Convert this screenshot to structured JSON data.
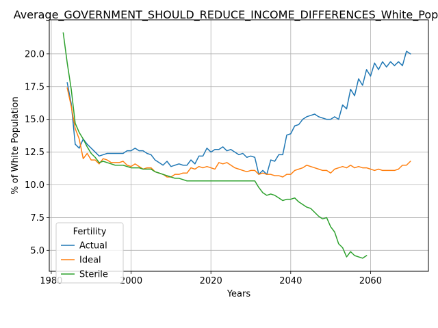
{
  "chart_data": {
    "type": "line",
    "title": "Average_GOVERNMENT_SHOULD_REDUCE_INCOME_DIFFERENCES_White_Pop",
    "xlabel": "Years",
    "ylabel": "% of White Population",
    "xlim": [
      1979.5,
      2074.5
    ],
    "ylim": [
      3.4,
      22.6
    ],
    "xticks": [
      1980,
      2000,
      2020,
      2040,
      2060
    ],
    "yticks": [
      5.0,
      7.5,
      10.0,
      12.5,
      15.0,
      17.5,
      20.0
    ],
    "xtick_labels": [
      "1980",
      "2000",
      "2020",
      "2040",
      "2060"
    ],
    "ytick_labels": [
      "5.0",
      "7.5",
      "10.0",
      "12.5",
      "15.0",
      "17.5",
      "20.0"
    ],
    "grid": true,
    "legend": {
      "title": "Fertility",
      "position": "lower left"
    },
    "series": [
      {
        "name": "Actual",
        "color": "#1f77b4",
        "x": [
          1984,
          1985,
          1986,
          1987,
          1988,
          1989,
          1990,
          1991,
          1992,
          1993,
          1994,
          1995,
          1996,
          1997,
          1998,
          1999,
          2000,
          2001,
          2002,
          2003,
          2004,
          2005,
          2006,
          2007,
          2008,
          2009,
          2010,
          2011,
          2012,
          2013,
          2014,
          2015,
          2016,
          2017,
          2018,
          2019,
          2020,
          2021,
          2022,
          2023,
          2024,
          2025,
          2026,
          2027,
          2028,
          2029,
          2030,
          2031,
          2032,
          2033,
          2034,
          2035,
          2036,
          2037,
          2038,
          2039,
          2040,
          2041,
          2042,
          2043,
          2044,
          2045,
          2046,
          2047,
          2048,
          2049,
          2050,
          2051,
          2052,
          2053,
          2054,
          2055,
          2056,
          2057,
          2058,
          2059,
          2060,
          2061,
          2062,
          2063,
          2064,
          2065,
          2066,
          2067,
          2068,
          2069,
          2070
        ],
        "values": [
          17.8,
          16.2,
          13.1,
          12.8,
          13.5,
          13.1,
          12.8,
          12.5,
          12.2,
          12.3,
          12.4,
          12.4,
          12.4,
          12.4,
          12.4,
          12.6,
          12.6,
          12.8,
          12.6,
          12.6,
          12.4,
          12.3,
          11.9,
          11.7,
          11.5,
          11.8,
          11.4,
          11.5,
          11.6,
          11.5,
          11.5,
          11.9,
          11.6,
          12.2,
          12.2,
          12.8,
          12.5,
          12.7,
          12.7,
          12.9,
          12.6,
          12.7,
          12.5,
          12.3,
          12.4,
          12.1,
          12.2,
          12.1,
          10.8,
          11.1,
          10.8,
          11.9,
          11.8,
          12.3,
          12.3,
          13.8,
          13.9,
          14.5,
          14.6,
          15.0,
          15.2,
          15.3,
          15.4,
          15.2,
          15.1,
          15.0,
          15.0,
          15.2,
          15.0,
          16.1,
          15.8,
          17.3,
          16.8,
          18.1,
          17.6,
          18.8,
          18.3,
          19.3,
          18.8,
          19.4,
          19.0,
          19.4,
          19.1,
          19.4,
          19.1,
          20.2,
          20.0
        ]
      },
      {
        "name": "Ideal",
        "color": "#ff7f0e",
        "x": [
          1984,
          1985,
          1986,
          1987,
          1988,
          1989,
          1990,
          1991,
          1992,
          1993,
          1994,
          1995,
          1996,
          1997,
          1998,
          1999,
          2000,
          2001,
          2002,
          2003,
          2004,
          2005,
          2006,
          2007,
          2008,
          2009,
          2010,
          2011,
          2012,
          2013,
          2014,
          2015,
          2016,
          2017,
          2018,
          2019,
          2020,
          2021,
          2022,
          2023,
          2024,
          2025,
          2026,
          2027,
          2028,
          2029,
          2030,
          2031,
          2032,
          2033,
          2034,
          2035,
          2036,
          2037,
          2038,
          2039,
          2040,
          2041,
          2042,
          2043,
          2044,
          2045,
          2046,
          2047,
          2048,
          2049,
          2050,
          2051,
          2052,
          2053,
          2054,
          2055,
          2056,
          2057,
          2058,
          2059,
          2060,
          2061,
          2062,
          2063,
          2064,
          2065,
          2066,
          2067,
          2068,
          2069,
          2070
        ],
        "values": [
          17.4,
          16.0,
          14.3,
          13.5,
          12.0,
          12.4,
          11.9,
          11.9,
          11.6,
          12.0,
          11.9,
          11.7,
          11.7,
          11.7,
          11.8,
          11.5,
          11.4,
          11.6,
          11.4,
          11.2,
          11.3,
          11.3,
          11.0,
          10.9,
          10.8,
          10.6,
          10.6,
          10.8,
          10.8,
          10.9,
          10.9,
          11.3,
          11.2,
          11.4,
          11.3,
          11.4,
          11.3,
          11.2,
          11.7,
          11.6,
          11.7,
          11.5,
          11.3,
          11.2,
          11.1,
          11.0,
          11.1,
          11.1,
          10.8,
          10.9,
          10.8,
          10.8,
          10.7,
          10.7,
          10.6,
          10.8,
          10.8,
          11.1,
          11.2,
          11.3,
          11.5,
          11.4,
          11.3,
          11.2,
          11.1,
          11.1,
          10.9,
          11.2,
          11.3,
          11.4,
          11.3,
          11.5,
          11.3,
          11.4,
          11.3,
          11.3,
          11.2,
          11.1,
          11.2,
          11.1,
          11.1,
          11.1,
          11.1,
          11.2,
          11.5,
          11.5,
          11.8
        ]
      },
      {
        "name": "Sterile",
        "color": "#2ca02c",
        "x": [
          1983,
          1984,
          1985,
          1986,
          1987,
          1988,
          1989,
          1990,
          1991,
          1992,
          1993,
          1994,
          1995,
          1996,
          1997,
          1998,
          1999,
          2000,
          2001,
          2002,
          2003,
          2004,
          2005,
          2006,
          2007,
          2008,
          2009,
          2010,
          2011,
          2012,
          2013,
          2014,
          2015,
          2016,
          2017,
          2018,
          2019,
          2020,
          2021,
          2022,
          2023,
          2024,
          2025,
          2026,
          2027,
          2028,
          2029,
          2030,
          2031,
          2032,
          2033,
          2034,
          2035,
          2036,
          2037,
          2038,
          2039,
          2040,
          2041,
          2042,
          2043,
          2044,
          2045,
          2046,
          2047,
          2048,
          2049,
          2050,
          2051,
          2052,
          2053,
          2054,
          2055,
          2056,
          2057,
          2058,
          2059
        ],
        "values": [
          21.6,
          19.3,
          17.3,
          14.7,
          14.0,
          13.5,
          12.9,
          12.4,
          12.1,
          11.7,
          11.8,
          11.7,
          11.6,
          11.5,
          11.5,
          11.5,
          11.4,
          11.3,
          11.3,
          11.3,
          11.2,
          11.2,
          11.2,
          11.0,
          10.9,
          10.8,
          10.7,
          10.6,
          10.5,
          10.5,
          10.4,
          10.3,
          10.3,
          10.3,
          10.3,
          10.3,
          10.3,
          10.3,
          10.3,
          10.3,
          10.3,
          10.3,
          10.3,
          10.3,
          10.3,
          10.3,
          10.3,
          10.3,
          10.3,
          9.8,
          9.4,
          9.2,
          9.3,
          9.2,
          9.0,
          8.8,
          8.9,
          8.9,
          9.0,
          8.7,
          8.5,
          8.3,
          8.2,
          7.9,
          7.6,
          7.4,
          7.5,
          6.8,
          6.4,
          5.5,
          5.2,
          4.5,
          4.9,
          4.6,
          4.5,
          4.4,
          4.6
        ]
      }
    ]
  }
}
